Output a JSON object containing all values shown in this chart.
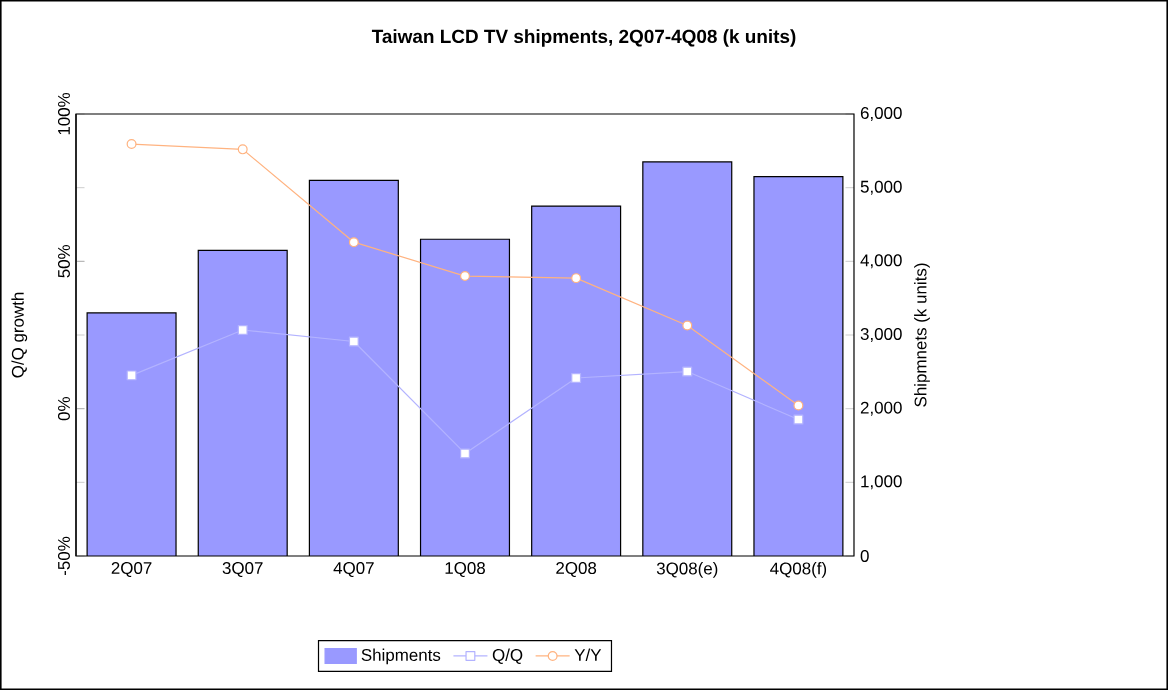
{
  "chart_data": {
    "type": "bar",
    "title": "Taiwan LCD TV shipments, 2Q07-4Q08 (k units)",
    "ylabel": "Q/Q growth",
    "y2label": "Shipmnets (k units)",
    "categories": [
      "2Q07",
      "3Q07",
      "4Q07",
      "1Q08",
      "2Q08",
      "3Q08(e)",
      "4Q08(f)"
    ],
    "series": [
      {
        "name": "Shipments",
        "color": "#9999ff",
        "axis": "y2",
        "values": [
          3300,
          4150,
          5100,
          4300,
          4750,
          5350,
          5150
        ]
      },
      {
        "name": "Q/Q",
        "type": "line",
        "color": "#b3b3ff",
        "marker": "square",
        "values": [
          11.3,
          26.7,
          22.8,
          -15.2,
          10.4,
          12.6,
          -3.7
        ]
      },
      {
        "name": "Y/Y",
        "type": "line",
        "color": "#ffb380",
        "marker": "circle",
        "values": [
          89.8,
          88.0,
          56.5,
          45.0,
          44.3,
          28.2,
          1.1
        ]
      }
    ],
    "ylim": [
      -50,
      100
    ],
    "yticks": [
      {
        "value": -50,
        "label": "-50%"
      },
      {
        "value": 0,
        "label": "0%"
      },
      {
        "value": 50,
        "label": "50%"
      },
      {
        "value": 100,
        "label": "100%"
      }
    ],
    "y2lim": [
      0,
      6000
    ],
    "y2ticks": [
      0,
      {
        "value": 1000,
        "label": "1,000"
      },
      {
        "value": 2000,
        "label": "2,000"
      },
      {
        "value": 3000,
        "label": "3,000"
      },
      {
        "value": 4000,
        "label": "4,000"
      },
      {
        "value": 5000,
        "label": "5,000"
      },
      {
        "value": 6000,
        "label": "6,000"
      }
    ],
    "legend": "bottom"
  }
}
